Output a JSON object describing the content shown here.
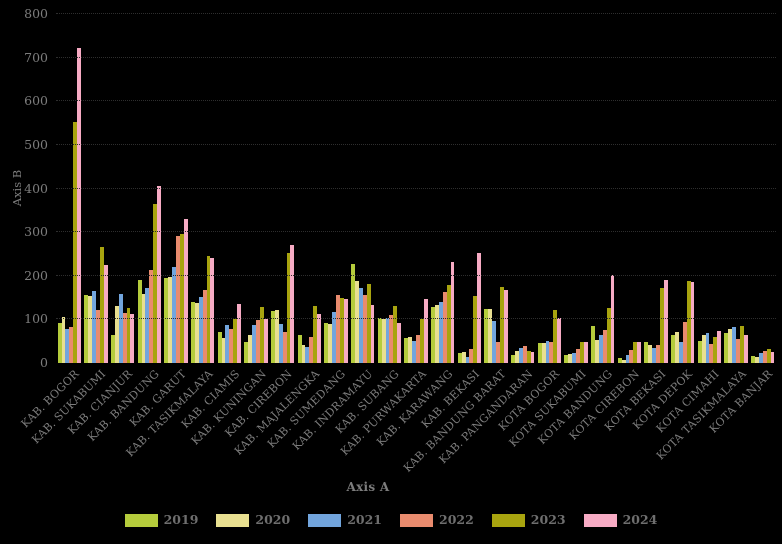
{
  "chart_data": {
    "type": "bar",
    "title": "",
    "xlabel": "Axis A",
    "ylabel": "Axis B",
    "ylim": [
      0,
      800
    ],
    "yticks": [
      0,
      100,
      200,
      300,
      400,
      500,
      600,
      700,
      800
    ],
    "grid": "faint dotted horizontal gridlines",
    "legend_position": "bottom-center",
    "background_color": "#000000",
    "axis_text_color": "#7d7d7d",
    "categories": [
      "KAB. BOGOR",
      "KAB. SUKABUMI",
      "KAB. CIANJUR",
      "KAB. BANDUNG",
      "KAB. GARUT",
      "KAB. TASIKMALAYA",
      "KAB. CIAMIS",
      "KAB. KUNINGAN",
      "KAB. CIREBON",
      "KAB. MAJALENGKA",
      "KAB. SUMEDANG",
      "KAB. INDRAMAYU",
      "KAB. SUBANG",
      "KAB. PURWAKARTA",
      "KAB. KARAWANG",
      "KAB. BEKASI",
      "KAB. BANDUNG BARAT",
      "KAB. PANGANDARAN",
      "KOTA BOGOR",
      "KOTA SUKABUMI",
      "KOTA BANDUNG",
      "KOTA CIREBON",
      "KOTA BEKASI",
      "KOTA DEPOK",
      "KOTA CIMAHI",
      "KOTA TASIKMALAYA",
      "KOTA BANJAR"
    ],
    "series": [
      {
        "name": "2019",
        "color": "#b5cc3c",
        "values": [
          92,
          155,
          64,
          190,
          195,
          140,
          72,
          48,
          119,
          64,
          92,
          228,
          104,
          57,
          128,
          23,
          123,
          19,
          45,
          19,
          85,
          11,
          48,
          64,
          51,
          68,
          17
        ]
      },
      {
        "name": "2020",
        "color": "#e8df90",
        "values": [
          105,
          153,
          130,
          158,
          197,
          137,
          58,
          64,
          122,
          42,
          89,
          187,
          100,
          59,
          134,
          26,
          123,
          28,
          47,
          21,
          53,
          8,
          42,
          72,
          64,
          79,
          14
        ]
      },
      {
        "name": "2021",
        "color": "#72a5dd",
        "values": [
          78,
          165,
          159,
          172,
          219,
          151,
          88,
          87,
          90,
          36,
          117,
          171,
          104,
          51,
          141,
          13,
          97,
          34,
          51,
          23,
          64,
          19,
          34,
          48,
          69,
          83,
          23
        ]
      },
      {
        "name": "2022",
        "color": "#e98b6e",
        "values": [
          82,
          121,
          115,
          213,
          291,
          168,
          78,
          99,
          70,
          59,
          155,
          156,
          111,
          64,
          162,
          32,
          49,
          39,
          49,
          32,
          76,
          30,
          42,
          94,
          44,
          54,
          28
        ]
      },
      {
        "name": "2023",
        "color": "#a8a40f",
        "values": [
          552,
          266,
          127,
          365,
          295,
          246,
          100,
          128,
          252,
          130,
          149,
          181,
          130,
          100,
          179,
          153,
          174,
          28,
          122,
          49,
          125,
          48,
          172,
          189,
          60,
          85,
          32
        ]
      },
      {
        "name": "2024",
        "color": "#f7abc4",
        "values": [
          722,
          225,
          113,
          406,
          329,
          240,
          135,
          100,
          271,
          113,
          147,
          134,
          92,
          146,
          232,
          253,
          168,
          26,
          103,
          48,
          202,
          48,
          190,
          185,
          73,
          64,
          26
        ]
      }
    ]
  }
}
